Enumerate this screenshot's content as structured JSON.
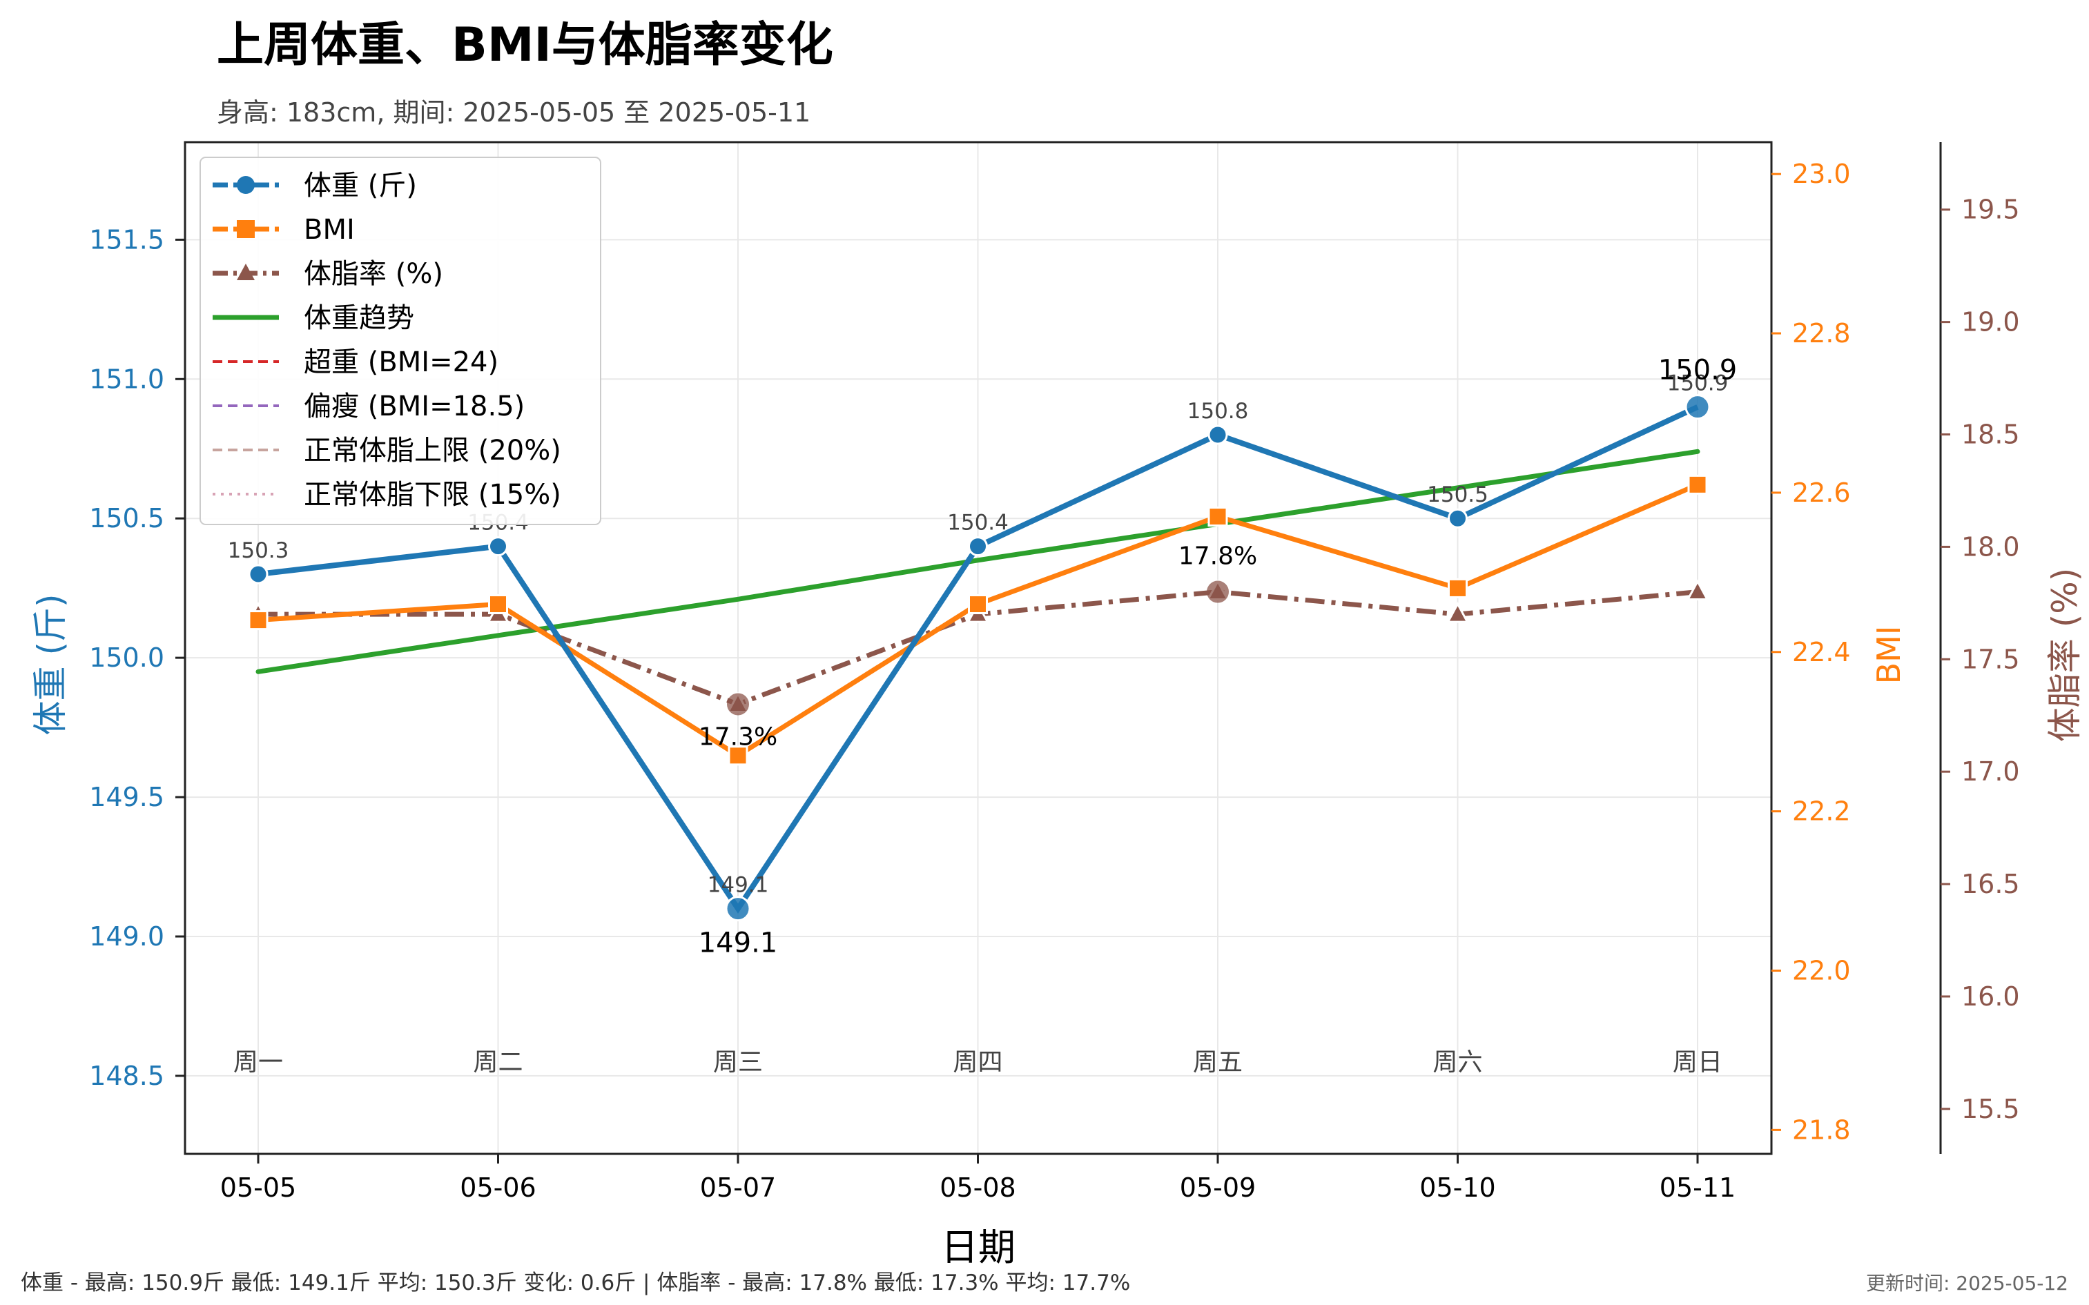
{
  "title": "上周体重、BMI与体脂率变化",
  "subtitle": "身高: 183cm, 期间: 2025-05-05 至 2025-05-11",
  "footer_left": "体重 - 最高: 150.9斤 最低: 149.1斤 平均: 150.3斤 变化: 0.6斤 | 体脂率 - 最高: 17.8% 最低: 17.3% 平均: 17.7%",
  "footer_right": "更新时间: 2025-05-12",
  "chart_data": {
    "type": "line",
    "xlabel": "日期",
    "categories": [
      "05-05",
      "05-06",
      "05-07",
      "05-08",
      "05-09",
      "05-10",
      "05-11"
    ],
    "weekday_labels": [
      "周一",
      "周二",
      "周三",
      "周四",
      "周五",
      "周六",
      "周日"
    ],
    "axes": {
      "weight": {
        "label": "体重 (斤)",
        "ylim": [
          148.22,
          151.85
        ],
        "ticks": [
          "148.5",
          "149.0",
          "149.5",
          "150.0",
          "150.5",
          "151.0",
          "151.5"
        ],
        "color": "#1f77b4"
      },
      "bmi": {
        "label": "BMI",
        "ylim": [
          21.77,
          23.04
        ],
        "ticks": [
          "21.8",
          "22.0",
          "22.2",
          "22.4",
          "22.6",
          "22.8",
          "23.0"
        ],
        "color": "#ff7f0e"
      },
      "body_fat": {
        "label": "体脂率 (%)",
        "ylim": [
          15.3,
          19.8
        ],
        "ticks": [
          "15.5",
          "16.0",
          "16.5",
          "17.0",
          "17.5",
          "18.0",
          "18.5",
          "19.0",
          "19.5"
        ],
        "color": "#8c564b"
      }
    },
    "series": [
      {
        "name": "体重 (斤)",
        "axis": "weight",
        "values": [
          150.3,
          150.4,
          149.1,
          150.4,
          150.8,
          150.5,
          150.9
        ],
        "value_labels": [
          "150.3",
          "150.4",
          "149.1",
          "150.4",
          "150.8",
          "150.5",
          "150.9"
        ],
        "color": "#1f77b4",
        "marker": "circle"
      },
      {
        "name": "BMI",
        "axis": "bmi",
        "values": [
          22.44,
          22.46,
          22.27,
          22.46,
          22.57,
          22.48,
          22.61
        ],
        "color": "#ff7f0e",
        "marker": "square"
      },
      {
        "name": "体脂率 (%)",
        "axis": "body_fat",
        "values": [
          17.7,
          17.7,
          17.3,
          17.7,
          17.8,
          17.7,
          17.8
        ],
        "color": "#8c564b",
        "marker": "triangle"
      },
      {
        "name": "体重趋势",
        "axis": "weight",
        "values": [
          149.95,
          150.08,
          150.21,
          150.35,
          150.48,
          150.61,
          150.74
        ],
        "color": "#2ca02c",
        "marker": "none"
      }
    ],
    "highlight_labels": {
      "weight_max": "150.9",
      "weight_min": "149.1",
      "fat_max": "17.8%",
      "fat_min": "17.3%"
    },
    "legend_entries": [
      "体重 (斤)",
      "BMI",
      "体脂率 (%)",
      "体重趋势",
      "超重 (BMI=24)",
      "偏瘦 (BMI=18.5)",
      "正常体脂上限 (20%)",
      "正常体脂下限 (15%)"
    ],
    "legend_colors": [
      "#1f77b4",
      "#ff7f0e",
      "#8c564b",
      "#2ca02c",
      "#d62728",
      "#9467bd",
      "#c7a49e",
      "#d8a3b5"
    ],
    "legend_position": "top-left",
    "grid": true
  }
}
